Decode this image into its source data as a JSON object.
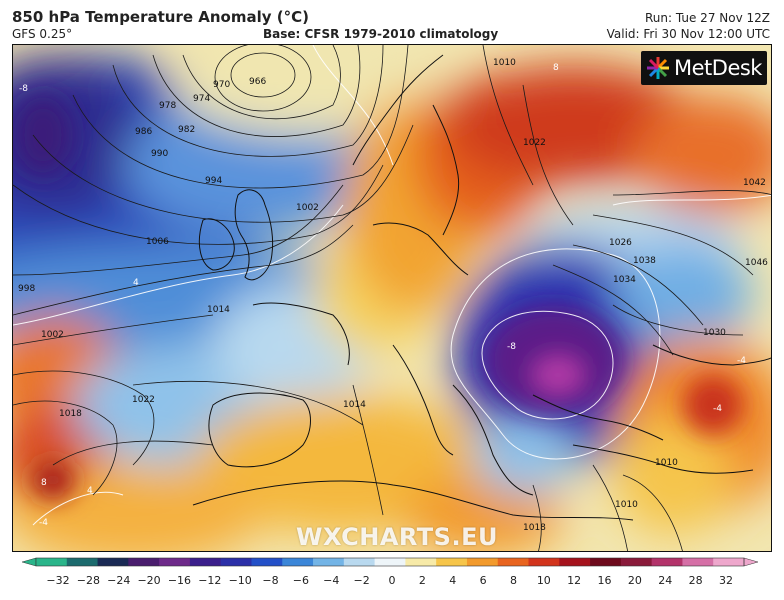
{
  "header": {
    "title": "850 hPa Temperature Anomaly (°C)",
    "model": "GFS 0.25°",
    "base": "Base: CFSR 1979-2010 climatology",
    "run": "Run: Tue 27 Nov 12Z",
    "valid": "Valid: Fri 30 Nov 12:00 UTC"
  },
  "logo": {
    "text": "MetDesk",
    "icon": "metdesk-starburst-icon"
  },
  "watermark": "WXCHARTS.EU",
  "colorbar": {
    "ticks": [
      "−32",
      "−28",
      "−24",
      "−20",
      "−16",
      "−12",
      "−10",
      "−8",
      "−6",
      "−4",
      "−2",
      "0",
      "2",
      "4",
      "6",
      "8",
      "10",
      "12",
      "16",
      "20",
      "24",
      "28",
      "32"
    ],
    "colors": [
      "#2ab58a",
      "#1c6b6e",
      "#1a2a55",
      "#4a1d6e",
      "#6e2a8a",
      "#3b1f8c",
      "#2b2fa8",
      "#2350c8",
      "#3b86d8",
      "#73b4e6",
      "#b9d9ef",
      "#eef5f9",
      "#f7eaa8",
      "#f6c54a",
      "#f29a2c",
      "#e8641f",
      "#d2341c",
      "#a5121c",
      "#6e0a1c",
      "#8a1a3a",
      "#b3336a",
      "#d56fa6",
      "#eea7cc"
    ]
  },
  "isobars": [
    {
      "label": "966"
    },
    {
      "label": "970"
    },
    {
      "label": "974"
    },
    {
      "label": "978"
    },
    {
      "label": "982"
    },
    {
      "label": "986"
    },
    {
      "label": "990"
    },
    {
      "label": "994"
    },
    {
      "label": "998"
    },
    {
      "label": "1002"
    },
    {
      "label": "1002"
    },
    {
      "label": "1006"
    },
    {
      "label": "1014"
    },
    {
      "label": "1014"
    },
    {
      "label": "1018"
    },
    {
      "label": "1022"
    },
    {
      "label": "1010"
    },
    {
      "label": "1022"
    },
    {
      "label": "1026"
    },
    {
      "label": "1034"
    },
    {
      "label": "1038"
    },
    {
      "label": "1042"
    },
    {
      "label": "1046"
    },
    {
      "label": "1030"
    },
    {
      "label": "1010"
    },
    {
      "label": "1010"
    },
    {
      "label": "1018"
    }
  ],
  "anomaly_labels": [
    {
      "label": "-8"
    },
    {
      "label": "4"
    },
    {
      "label": "4"
    },
    {
      "label": "8"
    },
    {
      "label": "-4"
    },
    {
      "label": "-8"
    },
    {
      "label": "8"
    },
    {
      "label": "-4"
    },
    {
      "label": "-4"
    }
  ]
}
